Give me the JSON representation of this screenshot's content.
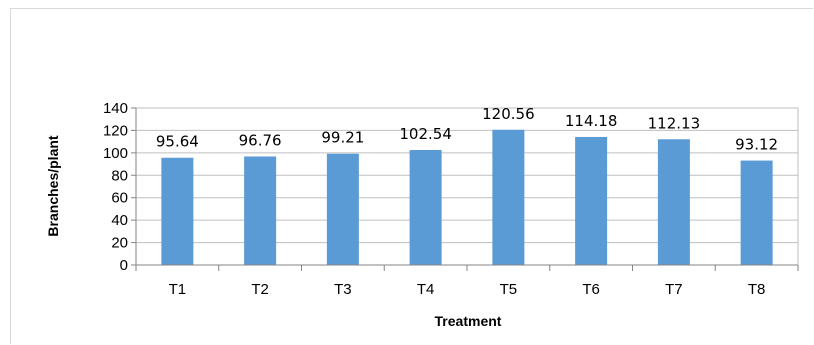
{
  "chart_data": {
    "type": "bar",
    "categories": [
      "T1",
      "T2",
      "T3",
      "T4",
      "T5",
      "T6",
      "T7",
      "T8"
    ],
    "values": [
      95.64,
      96.76,
      99.21,
      102.54,
      120.56,
      114.18,
      112.13,
      93.12
    ],
    "data_labels": [
      "95.64",
      "96.76",
      "99.21",
      "102.54",
      "120.56",
      "114.18",
      "112.13",
      "93.12"
    ],
    "title": "",
    "xlabel": "Treatment",
    "ylabel": "Branches/plant",
    "ylim": [
      0,
      140
    ],
    "yticks": [
      0,
      20,
      40,
      60,
      80,
      100,
      120,
      140
    ],
    "ytick_labels": [
      "0",
      "20",
      "40",
      "60",
      "80",
      "100",
      "120",
      "140"
    ],
    "grid": true,
    "legend": "none",
    "colors": {
      "bar": "#5b9bd5",
      "grid": "#bfbfbf",
      "axis": "#868686"
    }
  }
}
